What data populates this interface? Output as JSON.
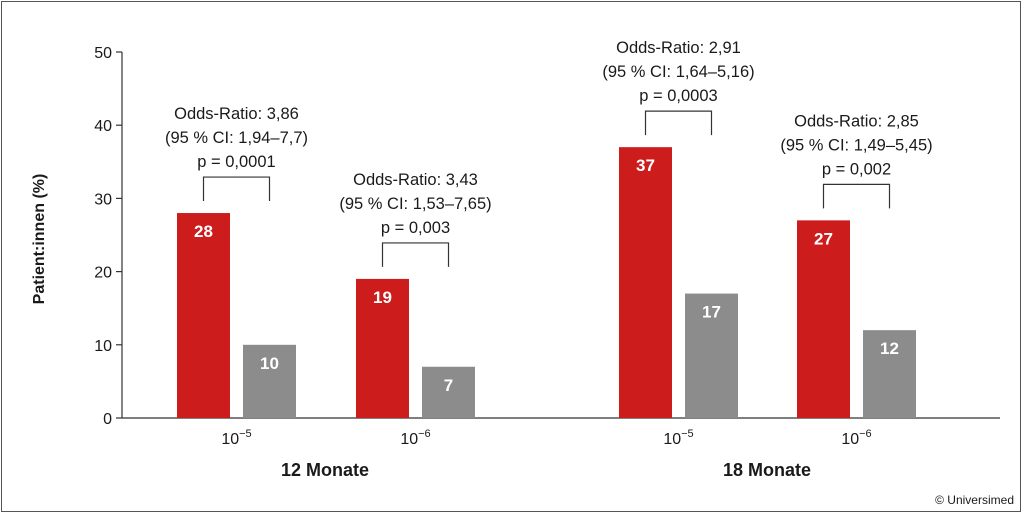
{
  "chart_data": {
    "type": "bar",
    "ylabel": "Patient:innen (%)",
    "ylim": [
      0,
      50
    ],
    "yticks": [
      "0",
      "10",
      "20",
      "30",
      "40",
      "50"
    ],
    "series_colors": [
      "#cc1c1c",
      "#8c8c8c"
    ],
    "groups": [
      {
        "label": "12 Monate",
        "clusters": [
          {
            "tick": {
              "base": "10",
              "exp": "−5"
            },
            "values": [
              28,
              10
            ],
            "value_labels": [
              "28",
              "10"
            ],
            "annotation": [
              "Odds-Ratio: 3,86",
              "(95 % CI: 1,94–7,7)",
              "p = 0,0001"
            ]
          },
          {
            "tick": {
              "base": "10",
              "exp": "−6"
            },
            "values": [
              19,
              7
            ],
            "value_labels": [
              "19",
              "7"
            ],
            "annotation": [
              "Odds-Ratio: 3,43",
              "(95 % CI: 1,53–7,65)",
              "p = 0,003"
            ]
          }
        ]
      },
      {
        "label": "18 Monate",
        "clusters": [
          {
            "tick": {
              "base": "10",
              "exp": "−5"
            },
            "values": [
              37,
              17
            ],
            "value_labels": [
              "37",
              "17"
            ],
            "annotation": [
              "Odds-Ratio: 2,91",
              "(95 % CI: 1,64–5,16)",
              "p = 0,0003"
            ]
          },
          {
            "tick": {
              "base": "10",
              "exp": "−6"
            },
            "values": [
              27,
              12
            ],
            "value_labels": [
              "27",
              "12"
            ],
            "annotation": [
              "Odds-Ratio: 2,85",
              "(95 % CI: 1,49–5,45)",
              "p = 0,002"
            ]
          }
        ]
      }
    ]
  },
  "copyright": "© Universimed"
}
